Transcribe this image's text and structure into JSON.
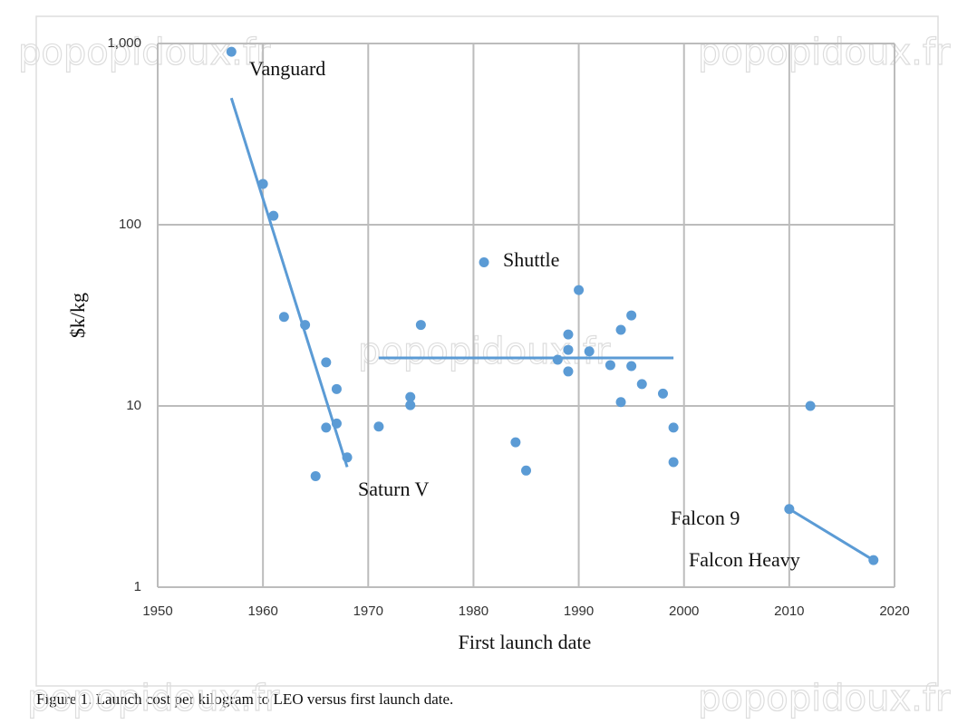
{
  "chart_data": {
    "type": "scatter",
    "caption": "Figure 1. Launch cost per kilogram to LEO versus first launch date.",
    "watermark": "popopidoux.fr",
    "xlabel": "First launch date",
    "ylabel": "$k/kg",
    "yscale": "log",
    "grid": true,
    "color": "#5b9bd5",
    "xlim": [
      1950,
      2020
    ],
    "xticks": [
      1950,
      1960,
      1970,
      1980,
      1990,
      2000,
      2010,
      2020
    ],
    "ylim": [
      1,
      1000
    ],
    "yticks": [
      {
        "value": 1000,
        "label": "1,000"
      },
      100,
      10,
      1
    ],
    "x": [
      1957,
      1960,
      1961,
      1962,
      1964,
      1965,
      1966,
      1966,
      1967,
      1967,
      1968,
      1971,
      1974,
      1974,
      1975,
      1981,
      1984,
      1985,
      1988,
      1989,
      1989,
      1989,
      1990,
      1991,
      1993,
      1994,
      1994,
      1995,
      1995,
      1996,
      1998,
      1999,
      1999,
      2010,
      2012,
      2018
    ],
    "values": [
      900,
      168,
      112,
      31,
      28,
      4.1,
      17.4,
      7.6,
      12.4,
      8.0,
      5.2,
      7.7,
      11.2,
      10.1,
      28,
      62,
      6.3,
      4.4,
      18,
      24.8,
      20.4,
      15.5,
      43.6,
      20,
      16.8,
      26.3,
      10.5,
      31.6,
      16.6,
      13.2,
      11.7,
      7.6,
      4.9,
      2.7,
      10,
      1.41
    ],
    "trendlines": [
      {
        "x": [
          1957,
          1968
        ],
        "values": [
          500,
          4.6
        ]
      },
      {
        "x": [
          1971,
          1999
        ],
        "values": [
          18.4,
          18.4
        ]
      },
      {
        "x": [
          2010,
          2018
        ],
        "values": [
          2.7,
          1.41
        ]
      }
    ],
    "annotations": [
      "Vanguard",
      "Shuttle",
      "Saturn V",
      "Falcon 9",
      "Falcon Heavy"
    ]
  }
}
